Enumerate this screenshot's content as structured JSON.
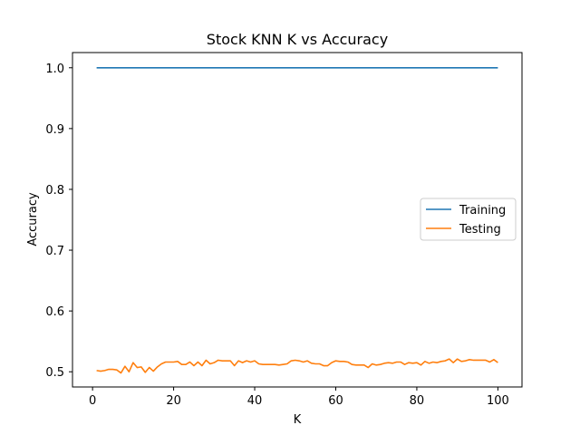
{
  "chart_data": {
    "type": "line",
    "title": "Stock KNN K vs Accuracy",
    "xlabel": "K",
    "ylabel": "Accuracy",
    "xlim": [
      -4.95,
      105.95
    ],
    "ylim": [
      0.475,
      1.025
    ],
    "xticks": [
      0,
      20,
      40,
      60,
      80,
      100
    ],
    "yticks": [
      0.5,
      0.6,
      0.7,
      0.8,
      0.9,
      1.0
    ],
    "ytick_labels": [
      "0.5",
      "0.6",
      "0.7",
      "0.8",
      "0.9",
      "1.0"
    ],
    "grid": false,
    "legend_position": "center-right",
    "x": [
      1,
      2,
      3,
      4,
      5,
      6,
      7,
      8,
      9,
      10,
      11,
      12,
      13,
      14,
      15,
      16,
      17,
      18,
      19,
      20,
      21,
      22,
      23,
      24,
      25,
      26,
      27,
      28,
      29,
      30,
      31,
      32,
      33,
      34,
      35,
      36,
      37,
      38,
      39,
      40,
      41,
      42,
      43,
      44,
      45,
      46,
      47,
      48,
      49,
      50,
      51,
      52,
      53,
      54,
      55,
      56,
      57,
      58,
      59,
      60,
      61,
      62,
      63,
      64,
      65,
      66,
      67,
      68,
      69,
      70,
      71,
      72,
      73,
      74,
      75,
      76,
      77,
      78,
      79,
      80,
      81,
      82,
      83,
      84,
      85,
      86,
      87,
      88,
      89,
      90,
      91,
      92,
      93,
      94,
      95,
      96,
      97,
      98,
      99,
      100
    ],
    "series": [
      {
        "name": "Training",
        "color": "#1f77b4",
        "values": [
          1,
          1,
          1,
          1,
          1,
          1,
          1,
          1,
          1,
          1,
          1,
          1,
          1,
          1,
          1,
          1,
          1,
          1,
          1,
          1,
          1,
          1,
          1,
          1,
          1,
          1,
          1,
          1,
          1,
          1,
          1,
          1,
          1,
          1,
          1,
          1,
          1,
          1,
          1,
          1,
          1,
          1,
          1,
          1,
          1,
          1,
          1,
          1,
          1,
          1,
          1,
          1,
          1,
          1,
          1,
          1,
          1,
          1,
          1,
          1,
          1,
          1,
          1,
          1,
          1,
          1,
          1,
          1,
          1,
          1,
          1,
          1,
          1,
          1,
          1,
          1,
          1,
          1,
          1,
          1,
          1,
          1,
          1,
          1,
          1,
          1,
          1,
          1,
          1,
          1,
          1,
          1,
          1,
          1,
          1,
          1,
          1,
          1,
          1,
          1
        ]
      },
      {
        "name": "Testing",
        "color": "#ff7f0e",
        "values": [
          0.502,
          0.501,
          0.502,
          0.504,
          0.504,
          0.503,
          0.498,
          0.509,
          0.5,
          0.515,
          0.507,
          0.508,
          0.499,
          0.507,
          0.501,
          0.508,
          0.513,
          0.516,
          0.516,
          0.516,
          0.517,
          0.512,
          0.512,
          0.516,
          0.51,
          0.516,
          0.51,
          0.519,
          0.513,
          0.515,
          0.519,
          0.518,
          0.518,
          0.518,
          0.51,
          0.518,
          0.515,
          0.518,
          0.516,
          0.518,
          0.513,
          0.512,
          0.512,
          0.512,
          0.512,
          0.511,
          0.512,
          0.513,
          0.518,
          0.519,
          0.518,
          0.516,
          0.518,
          0.514,
          0.513,
          0.513,
          0.51,
          0.51,
          0.515,
          0.518,
          0.517,
          0.517,
          0.516,
          0.512,
          0.511,
          0.511,
          0.511,
          0.507,
          0.513,
          0.511,
          0.512,
          0.514,
          0.515,
          0.514,
          0.516,
          0.516,
          0.512,
          0.515,
          0.514,
          0.515,
          0.511,
          0.517,
          0.514,
          0.516,
          0.515,
          0.517,
          0.518,
          0.521,
          0.515,
          0.521,
          0.517,
          0.518,
          0.52,
          0.519,
          0.519,
          0.519,
          0.519,
          0.516,
          0.52,
          0.515
        ]
      }
    ]
  }
}
